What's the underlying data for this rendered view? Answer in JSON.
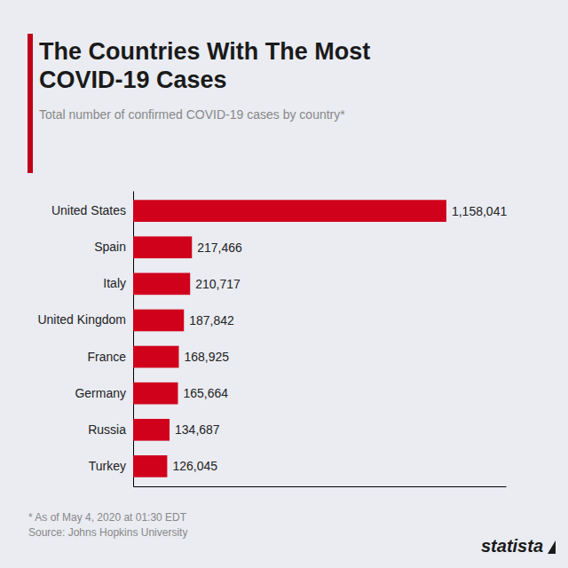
{
  "chart_data": {
    "type": "bar",
    "orientation": "horizontal",
    "title": [
      "The Countries With The Most",
      "COVID-19 Cases"
    ],
    "subtitle": "Total number of confirmed COVID-19 cases by country*",
    "annotations": [
      "* As of May 4, 2020 at 01:30 EDT",
      "Source: Johns Hopkins University",
      "statista"
    ],
    "categories": [
      "United States",
      "Spain",
      "Italy",
      "United Kingdom",
      "France",
      "Germany",
      "Russia",
      "Turkey"
    ],
    "values": [
      1158041,
      217466,
      210717,
      187842,
      168925,
      165664,
      134687,
      126045
    ],
    "value_labels": [
      "1,158,041",
      "217,466",
      "210,717",
      "187,842",
      "168,925",
      "165,664",
      "134,687",
      "126,045"
    ],
    "data_labels": true,
    "color": "#D0021B",
    "xlim": [
      0,
      1378068.79
    ],
    "xticks": [],
    "tick_labels": "y",
    "grid": false
  }
}
